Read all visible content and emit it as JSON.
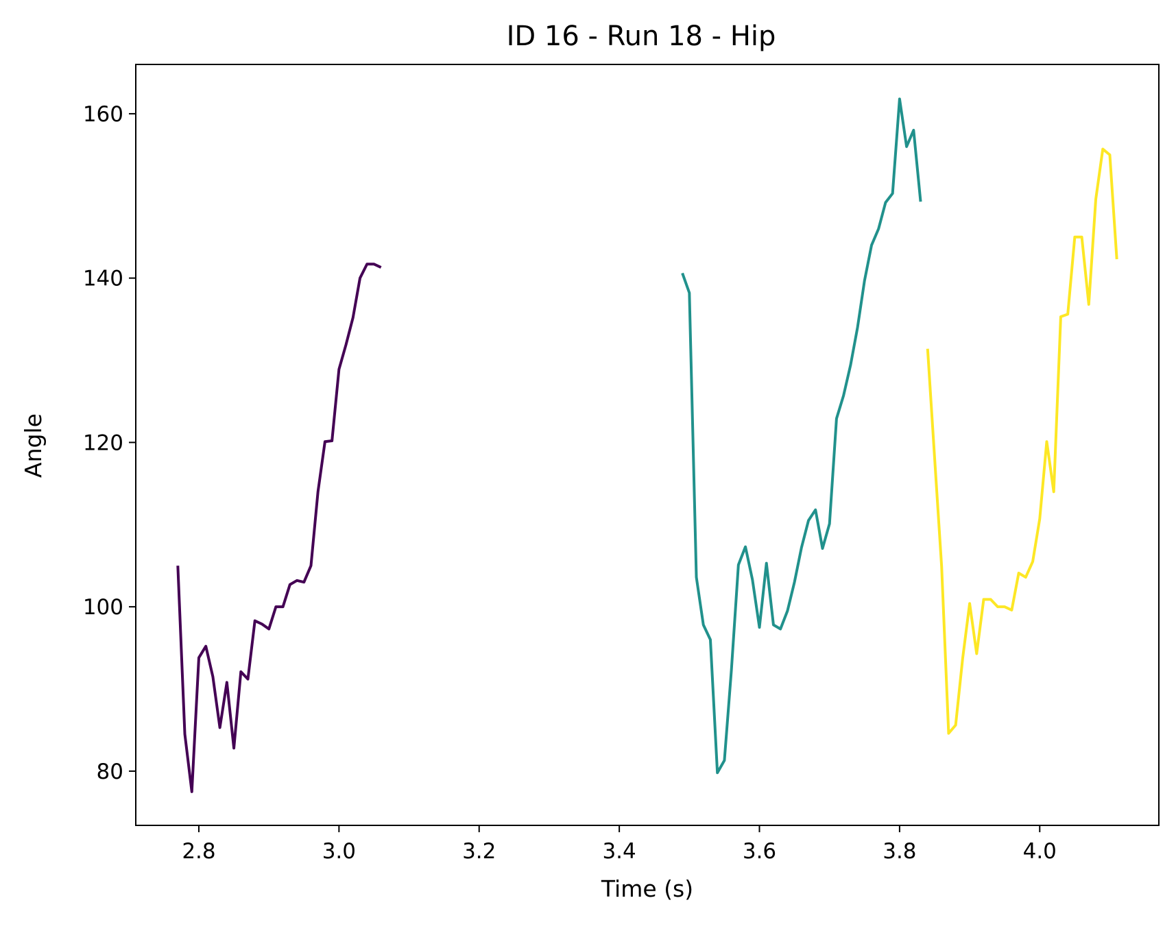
{
  "chart_data": {
    "type": "line",
    "title": "ID 16 - Run 18 - Hip",
    "xlabel": "Time (s)",
    "ylabel": "Angle",
    "xlim": [
      2.71,
      4.17
    ],
    "ylim": [
      73.4,
      166.0
    ],
    "xticks": [
      2.8,
      3.0,
      3.2,
      3.4,
      3.6,
      3.8,
      4.0
    ],
    "xtick_labels": [
      "2.8",
      "3.0",
      "3.2",
      "3.4",
      "3.6",
      "3.8",
      "4.0"
    ],
    "yticks": [
      80,
      100,
      120,
      140,
      160
    ],
    "ytick_labels": [
      "80",
      "100",
      "120",
      "140",
      "160"
    ],
    "grid": false,
    "legend": false,
    "series": [
      {
        "color": "#440154",
        "x": [
          2.77,
          2.78,
          2.79,
          2.8,
          2.81,
          2.82,
          2.83,
          2.84,
          2.85,
          2.86,
          2.87,
          2.88,
          2.89,
          2.9,
          2.91,
          2.92,
          2.93,
          2.94,
          2.95,
          2.96,
          2.97,
          2.98,
          2.99,
          3.0,
          3.01,
          3.02,
          3.03,
          3.04,
          3.05,
          3.06
        ],
        "y": [
          105.0,
          84.5,
          77.5,
          93.8,
          95.2,
          91.5,
          85.3,
          90.8,
          82.8,
          92.1,
          91.2,
          98.3,
          97.9,
          97.3,
          100.0,
          100.0,
          102.7,
          103.2,
          103.0,
          105.0,
          114.0,
          120.1,
          120.2,
          128.9,
          131.9,
          135.2,
          140.0,
          141.7,
          141.7,
          141.3
        ]
      },
      {
        "color": "#21918c",
        "x": [
          3.49,
          3.5,
          3.51,
          3.52,
          3.53,
          3.54,
          3.55,
          3.56,
          3.57,
          3.58,
          3.59,
          3.6,
          3.61,
          3.62,
          3.63,
          3.64,
          3.65,
          3.66,
          3.67,
          3.68,
          3.69,
          3.7,
          3.71,
          3.72,
          3.73,
          3.74,
          3.75,
          3.76,
          3.77,
          3.78,
          3.79,
          3.8,
          3.81,
          3.82,
          3.83
        ],
        "y": [
          140.6,
          138.2,
          103.6,
          97.8,
          96.0,
          79.8,
          81.3,
          92.3,
          105.1,
          107.3,
          103.3,
          97.5,
          105.3,
          97.8,
          97.3,
          99.5,
          103.0,
          107.2,
          110.5,
          111.8,
          107.1,
          110.1,
          122.9,
          125.7,
          129.4,
          134.0,
          139.7,
          144.0,
          146.0,
          149.2,
          150.3,
          161.8,
          156.0,
          158.0,
          149.3
        ]
      },
      {
        "color": "#fde725",
        "x": [
          3.84,
          3.85,
          3.86,
          3.87,
          3.88,
          3.89,
          3.9,
          3.91,
          3.92,
          3.93,
          3.94,
          3.95,
          3.96,
          3.97,
          3.98,
          3.99,
          4.0,
          4.01,
          4.02,
          4.03,
          4.04,
          4.05,
          4.06,
          4.07,
          4.08,
          4.09,
          4.1,
          4.11
        ],
        "y": [
          131.4,
          118.1,
          104.9,
          84.6,
          85.6,
          93.7,
          100.4,
          94.3,
          100.9,
          100.9,
          100.0,
          100.0,
          99.6,
          104.1,
          103.6,
          105.5,
          110.7,
          120.1,
          114.0,
          135.3,
          135.6,
          145.0,
          145.0,
          136.8,
          149.6,
          155.7,
          155.0,
          142.3
        ]
      }
    ]
  }
}
